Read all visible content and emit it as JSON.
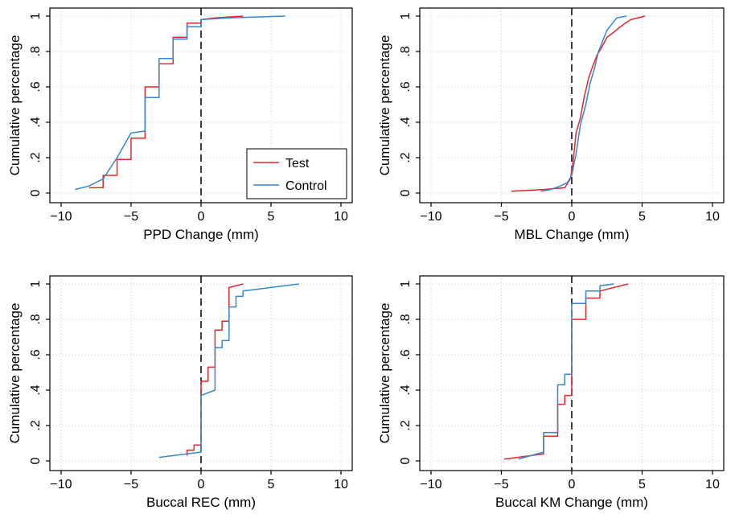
{
  "chart_data": [
    {
      "type": "line",
      "xlabel": "PPD Change (mm)",
      "ylabel": "Cumulative percentage",
      "xlim": [
        -10,
        10
      ],
      "ylim": [
        0,
        1
      ],
      "xticks": [
        "−10",
        "−5",
        "0",
        "5",
        "10"
      ],
      "yticks": [
        "0",
        ".2",
        ".4",
        ".6",
        ".8",
        "1"
      ],
      "grid": true,
      "reference_line_x": 0,
      "legend": {
        "position": "bottom-right",
        "entries": [
          "Test",
          "Control"
        ]
      },
      "series": [
        {
          "name": "Test",
          "color": "#e8232a",
          "x": [
            -8,
            -8,
            -7,
            -7,
            -6,
            -6,
            -5,
            -5,
            -4,
            -4,
            -3,
            -3,
            -2,
            -2,
            -1,
            -1,
            0,
            0,
            1,
            3
          ],
          "y": [
            0.03,
            0.03,
            0.03,
            0.1,
            0.1,
            0.19,
            0.19,
            0.31,
            0.31,
            0.6,
            0.6,
            0.73,
            0.73,
            0.88,
            0.88,
            0.96,
            0.96,
            0.98,
            0.99,
            1.0
          ]
        },
        {
          "name": "Control",
          "color": "#3a86c8",
          "x": [
            -9,
            -8,
            -8,
            -7,
            -7,
            -6,
            -6,
            -5,
            -5,
            -4,
            -4,
            -3,
            -3,
            -2,
            -2,
            -1,
            -1,
            0,
            0,
            2,
            4,
            6
          ],
          "y": [
            0.02,
            0.04,
            0.04,
            0.08,
            0.08,
            0.2,
            0.2,
            0.34,
            0.34,
            0.35,
            0.54,
            0.54,
            0.76,
            0.76,
            0.87,
            0.87,
            0.94,
            0.94,
            0.98,
            0.99,
            0.995,
            1.0
          ]
        }
      ]
    },
    {
      "type": "line",
      "xlabel": "MBL Change (mm)",
      "ylabel": "Cumulative percentage",
      "xlim": [
        -10,
        10
      ],
      "ylim": [
        0,
        1
      ],
      "xticks": [
        "−10",
        "−5",
        "0",
        "5",
        "10"
      ],
      "yticks": [
        "0",
        ".2",
        ".4",
        ".6",
        ".8",
        "1"
      ],
      "grid": true,
      "reference_line_x": 0,
      "series": [
        {
          "name": "Test",
          "color": "#e8232a",
          "x": [
            -4.3,
            -2.0,
            -0.5,
            -0.1,
            0.1,
            0.3,
            0.6,
            0.9,
            1.2,
            1.5,
            1.8,
            2.1,
            2.5,
            3.0,
            3.3,
            3.8,
            4.2,
            5.2
          ],
          "y": [
            0.01,
            0.02,
            0.03,
            0.08,
            0.18,
            0.34,
            0.42,
            0.55,
            0.65,
            0.72,
            0.78,
            0.82,
            0.88,
            0.91,
            0.93,
            0.96,
            0.98,
            1.0
          ]
        },
        {
          "name": "Control",
          "color": "#3a86c8",
          "x": [
            -2.2,
            -1.5,
            -0.8,
            -0.3,
            0.0,
            0.3,
            0.6,
            1.0,
            1.3,
            1.6,
            1.9,
            2.2,
            2.5,
            2.9,
            3.2,
            3.9
          ],
          "y": [
            0.01,
            0.02,
            0.04,
            0.06,
            0.1,
            0.22,
            0.38,
            0.5,
            0.62,
            0.7,
            0.8,
            0.86,
            0.92,
            0.96,
            0.99,
            1.0
          ]
        }
      ]
    },
    {
      "type": "line",
      "xlabel": "Buccal REC (mm)",
      "ylabel": "Cumulative percentage",
      "xlim": [
        -10,
        10
      ],
      "ylim": [
        0,
        1
      ],
      "xticks": [
        "−10",
        "−5",
        "0",
        "5",
        "10"
      ],
      "yticks": [
        "0",
        ".2",
        ".4",
        ".6",
        ".8",
        "1"
      ],
      "grid": true,
      "reference_line_x": 0,
      "series": [
        {
          "name": "Test",
          "color": "#e8232a",
          "x": [
            -1,
            -1,
            -0.5,
            -0.5,
            0,
            0,
            0.5,
            0.5,
            1,
            1,
            1.5,
            1.5,
            2,
            2,
            3
          ],
          "y": [
            0.03,
            0.06,
            0.06,
            0.09,
            0.09,
            0.45,
            0.45,
            0.53,
            0.53,
            0.74,
            0.74,
            0.79,
            0.79,
            0.98,
            1.0
          ]
        },
        {
          "name": "Control",
          "color": "#3a86c8",
          "x": [
            -3,
            0,
            0,
            1,
            1,
            1.5,
            1.5,
            2,
            2,
            2.5,
            2.5,
            3,
            3,
            4,
            5.5,
            7
          ],
          "y": [
            0.02,
            0.05,
            0.37,
            0.4,
            0.64,
            0.64,
            0.68,
            0.68,
            0.87,
            0.87,
            0.93,
            0.93,
            0.96,
            0.97,
            0.985,
            1.0
          ]
        }
      ]
    },
    {
      "type": "line",
      "xlabel": "Buccal KM Change (mm)",
      "ylabel": "Cumulative percentage",
      "xlim": [
        -10,
        10
      ],
      "ylim": [
        0,
        1
      ],
      "xticks": [
        "−10",
        "−5",
        "0",
        "5",
        "10"
      ],
      "yticks": [
        "0",
        ".2",
        ".4",
        ".6",
        ".8",
        "1"
      ],
      "grid": true,
      "reference_line_x": 0,
      "series": [
        {
          "name": "Test",
          "color": "#e8232a",
          "x": [
            -4.8,
            -2,
            -2,
            -1,
            -1,
            -0.5,
            -0.5,
            0,
            0,
            1,
            1,
            2,
            2,
            4
          ],
          "y": [
            0.01,
            0.04,
            0.14,
            0.14,
            0.32,
            0.32,
            0.37,
            0.37,
            0.8,
            0.8,
            0.92,
            0.92,
            0.96,
            1.0
          ]
        },
        {
          "name": "Control",
          "color": "#3a86c8",
          "x": [
            -3.8,
            -2,
            -2,
            -1,
            -1,
            -0.5,
            -0.5,
            0,
            0,
            1,
            1,
            2,
            2,
            3
          ],
          "y": [
            0.01,
            0.05,
            0.16,
            0.16,
            0.43,
            0.43,
            0.49,
            0.49,
            0.89,
            0.89,
            0.96,
            0.96,
            0.99,
            1.0
          ]
        }
      ]
    }
  ]
}
